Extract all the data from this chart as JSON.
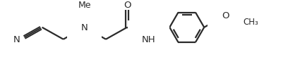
{
  "bg_color": "#ffffff",
  "line_color": "#2a2a2a",
  "line_width": 1.6,
  "font_size": 9.5,
  "atoms": {
    "N_label": "N",
    "Me_label": "Me",
    "O_carbonyl_label": "O",
    "NH_label": "NH",
    "N_cyano_label": "N",
    "O_methoxy_label": "O"
  }
}
